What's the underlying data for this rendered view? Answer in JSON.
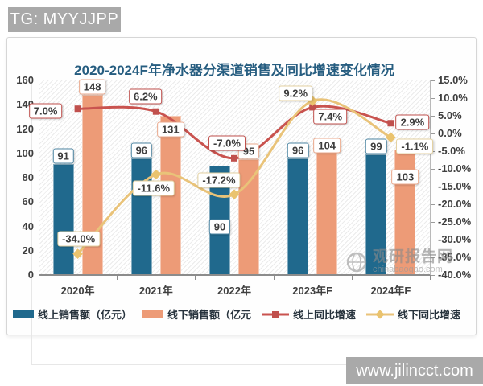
{
  "page": {
    "top_badge": "TG: MYYJJPP",
    "bottom_badge": "www.jilincct.com"
  },
  "watermark": {
    "name": "观研报告网",
    "site": "chinabaogao.com"
  },
  "chart_data": {
    "type": "bar",
    "subtype": "bar-line-combo",
    "title": "2020-2024F年净水器分渠道销售及同比增速变化情况",
    "categories": [
      "2020年",
      "2021年",
      "2022年",
      "2023年F",
      "2024年F"
    ],
    "left_axis": {
      "min": 0,
      "max": 160,
      "step": 20,
      "ticks": [
        "160",
        "140",
        "120",
        "100",
        "80",
        "60",
        "40",
        "20",
        "0"
      ]
    },
    "right_axis": {
      "min": -40,
      "max": 15,
      "step": 5,
      "ticks": [
        "15.0%",
        "10.0%",
        "5.0%",
        "0.0%",
        "-5.0%",
        "-10.0%",
        "-15.0%",
        "-20.0%",
        "-25.0%",
        "-30.0%",
        "-35.0%",
        "-40.0%"
      ]
    },
    "series": [
      {
        "key": "online-sales",
        "name": "线上销售额（亿元）",
        "type": "bar",
        "axis": "left",
        "color": "#20698d",
        "border": "#4d86a3",
        "values": [
          91,
          96,
          90,
          96,
          99
        ],
        "labels": [
          "91",
          "96",
          "90",
          "96",
          "99"
        ]
      },
      {
        "key": "offline-sales",
        "name": "线下销售额（亿元",
        "type": "bar",
        "axis": "left",
        "color": "#ed9b77",
        "border": "#eba98c",
        "values": [
          148,
          131,
          95,
          104,
          103
        ],
        "labels": [
          "148",
          "131",
          "95",
          "104",
          "103"
        ]
      },
      {
        "key": "online-growth",
        "name": "线上同比增速",
        "type": "line",
        "axis": "right",
        "color": "#c9534f",
        "marker": "square",
        "marker_color": "#c0504d",
        "border": "#c0504d",
        "values": [
          7.0,
          6.2,
          -7.0,
          7.4,
          2.9
        ],
        "labels": [
          "7.0%",
          "6.2%",
          "-7.0%",
          "7.4%",
          "2.9%"
        ]
      },
      {
        "key": "offline-growth",
        "name": "线下同比增速",
        "type": "line",
        "axis": "right",
        "color": "#e9c379",
        "marker": "diamond",
        "marker_color": "#eac36e",
        "border": "#e4d2a2",
        "values": [
          -34.0,
          -11.6,
          -17.2,
          9.2,
          -1.1
        ],
        "labels": [
          "-34.0%",
          "-11.6%",
          "-17.2%",
          "9.2%",
          "-1.1%"
        ]
      }
    ],
    "legend_position": "bottom",
    "grid": false
  }
}
